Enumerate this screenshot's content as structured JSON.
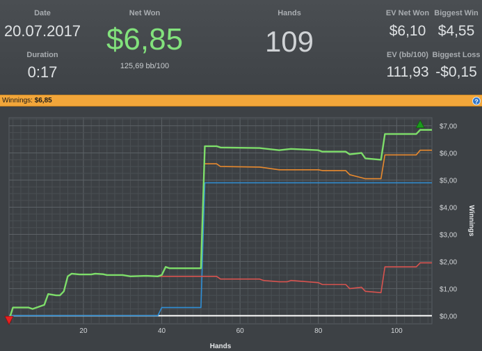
{
  "stats": {
    "date_label": "Date",
    "date_value": "20.07.2017",
    "duration_label": "Duration",
    "duration_value": "0:17",
    "net_won_label": "Net Won",
    "net_won_value": "$6,85",
    "bb_per_100": "125,69 bb/100",
    "hands_label": "Hands",
    "hands_value": "109",
    "ev_net_won_label": "EV Net Won",
    "ev_net_won_value": "$6,10",
    "biggest_win_label": "Biggest Win",
    "biggest_win_value": "$4,55",
    "ev_bb_label": "EV (bb/100)",
    "ev_bb_value": "111,93",
    "biggest_loss_label": "Biggest Loss",
    "biggest_loss_value": "-$0,15"
  },
  "bar": {
    "winnings_label": "Winnings:",
    "winnings_value": "$6,85",
    "help_icon": "?"
  },
  "colors": {
    "net_won": "#7ede6a",
    "ev": "#e98a2e",
    "showdown": "#2f8fd6",
    "non_showdown": "#d9534f",
    "zero_line": "#ffffff",
    "max_marker": "#1c9a1c",
    "min_marker": "#e82020"
  },
  "chart_data": {
    "type": "line",
    "xlabel": "Hands",
    "ylabel": "Winnings",
    "xlim": [
      1,
      109
    ],
    "ylim": [
      -0.3,
      7.3
    ],
    "x_ticks": [
      "20",
      "40",
      "60",
      "80",
      "100"
    ],
    "y_ticks": [
      "$7,00",
      "$6,00",
      "$5,00",
      "$4,00",
      "$3,00",
      "$2,00",
      "$1,00",
      "$0,00"
    ],
    "grid": true,
    "series": [
      {
        "colorKey": "net_won",
        "points": [
          [
            1,
            -0.15
          ],
          [
            2,
            0.3
          ],
          [
            6,
            0.3
          ],
          [
            7,
            0.25
          ],
          [
            10,
            0.4
          ],
          [
            11,
            0.8
          ],
          [
            13,
            0.75
          ],
          [
            14,
            0.75
          ],
          [
            15,
            0.9
          ],
          [
            16,
            1.45
          ],
          [
            17,
            1.55
          ],
          [
            19,
            1.52
          ],
          [
            22,
            1.52
          ],
          [
            23,
            1.55
          ],
          [
            25,
            1.53
          ],
          [
            26,
            1.5
          ],
          [
            30,
            1.5
          ],
          [
            32,
            1.45
          ],
          [
            36,
            1.47
          ],
          [
            39,
            1.45
          ],
          [
            40,
            1.5
          ],
          [
            41,
            1.8
          ],
          [
            42,
            1.75
          ],
          [
            50,
            1.75
          ],
          [
            51,
            6.25
          ],
          [
            54,
            6.25
          ],
          [
            55,
            6.2
          ],
          [
            65,
            6.18
          ],
          [
            70,
            6.1
          ],
          [
            73,
            6.15
          ],
          [
            80,
            6.1
          ],
          [
            81,
            6.05
          ],
          [
            87,
            6.05
          ],
          [
            88,
            5.95
          ],
          [
            91,
            6.0
          ],
          [
            92,
            5.8
          ],
          [
            96,
            5.75
          ],
          [
            97,
            6.7
          ],
          [
            105,
            6.7
          ],
          [
            106,
            6.85
          ],
          [
            109,
            6.85
          ]
        ]
      },
      {
        "colorKey": "ev",
        "points": [
          [
            51,
            5.6
          ],
          [
            54,
            5.6
          ],
          [
            55,
            5.5
          ],
          [
            65,
            5.48
          ],
          [
            70,
            5.38
          ],
          [
            80,
            5.38
          ],
          [
            81,
            5.35
          ],
          [
            87,
            5.35
          ],
          [
            88,
            5.2
          ],
          [
            92,
            5.05
          ],
          [
            96,
            5.05
          ],
          [
            97,
            5.93
          ],
          [
            105,
            5.93
          ],
          [
            106,
            6.1
          ],
          [
            109,
            6.1
          ]
        ]
      },
      {
        "colorKey": "showdown",
        "points": [
          [
            1,
            0
          ],
          [
            39,
            0
          ],
          [
            40,
            0.3
          ],
          [
            50,
            0.3
          ],
          [
            51,
            4.9
          ],
          [
            109,
            4.9
          ]
        ]
      },
      {
        "colorKey": "non_showdown",
        "points": [
          [
            1,
            -0.15
          ],
          [
            2,
            0.3
          ],
          [
            6,
            0.3
          ],
          [
            7,
            0.25
          ],
          [
            10,
            0.4
          ],
          [
            11,
            0.8
          ],
          [
            13,
            0.75
          ],
          [
            14,
            0.75
          ],
          [
            15,
            0.9
          ],
          [
            16,
            1.45
          ],
          [
            17,
            1.55
          ],
          [
            19,
            1.52
          ],
          [
            22,
            1.52
          ],
          [
            23,
            1.55
          ],
          [
            25,
            1.53
          ],
          [
            26,
            1.5
          ],
          [
            30,
            1.5
          ],
          [
            32,
            1.45
          ],
          [
            36,
            1.47
          ],
          [
            39,
            1.45
          ],
          [
            40,
            1.45
          ],
          [
            41,
            1.45
          ],
          [
            54,
            1.45
          ],
          [
            55,
            1.35
          ],
          [
            65,
            1.35
          ],
          [
            66,
            1.3
          ],
          [
            70,
            1.25
          ],
          [
            72,
            1.25
          ],
          [
            73,
            1.3
          ],
          [
            80,
            1.22
          ],
          [
            81,
            1.15
          ],
          [
            87,
            1.15
          ],
          [
            88,
            1.0
          ],
          [
            91,
            1.05
          ],
          [
            92,
            0.9
          ],
          [
            96,
            0.85
          ],
          [
            97,
            1.8
          ],
          [
            105,
            1.8
          ],
          [
            106,
            1.95
          ],
          [
            109,
            1.95
          ]
        ]
      }
    ],
    "markers": [
      {
        "type": "max",
        "x": 106,
        "y": 6.85,
        "colorKey": "max_marker"
      },
      {
        "type": "min",
        "x": 1,
        "y": -0.15,
        "colorKey": "min_marker"
      }
    ]
  }
}
